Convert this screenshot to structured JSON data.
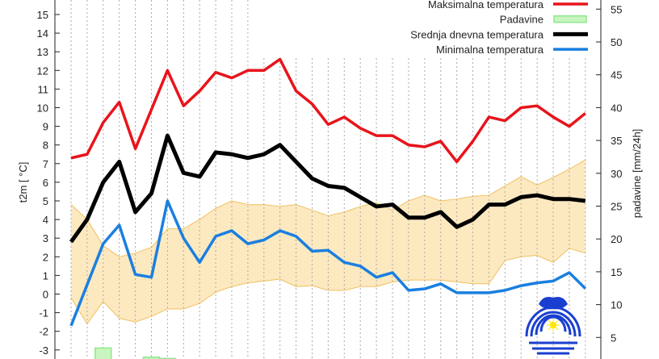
{
  "chart_data": {
    "type": "line",
    "title": "",
    "ylabel": "t2m [ °C]",
    "y2label": "padavine [mm/24h]",
    "ylim": [
      -3,
      15
    ],
    "y2lim": [
      5,
      55
    ],
    "yticks": [
      "-3",
      "-2",
      "-1",
      "0",
      "1",
      "2",
      "3",
      "4",
      "5",
      "6",
      "7",
      "8",
      "9",
      "10",
      "11",
      "12",
      "13",
      "14",
      "15"
    ],
    "y2ticks": [
      "5",
      "10",
      "15",
      "20",
      "25",
      "30",
      "35",
      "40",
      "45",
      "50",
      "55"
    ],
    "grid": "vertical dotted",
    "legend_position": "top-right",
    "legend": [
      {
        "label": "Maksimalna temperatura",
        "color": "#e8141b",
        "kind": "line"
      },
      {
        "label": "Padavine",
        "color": "#8ee88e",
        "kind": "box"
      },
      {
        "label": "Srednja dnevna temperatura",
        "color": "#000000",
        "kind": "line"
      },
      {
        "label": "Minimalna temperatura",
        "color": "#1a7fe0",
        "kind": "line"
      }
    ],
    "band_color": "#fde9c0",
    "series": [
      {
        "name": "Maksimalna temperatura",
        "color": "#e8141b",
        "values": [
          7.3,
          7.5,
          9.2,
          10.3,
          7.8,
          9.9,
          12.0,
          10.1,
          10.9,
          11.9,
          11.6,
          12.0,
          12.0,
          12.6,
          10.9,
          10.2,
          9.1,
          9.5,
          8.9,
          8.5,
          8.5,
          8.0,
          7.9,
          8.2,
          7.1,
          8.2,
          9.5,
          9.3,
          10.0,
          10.1,
          9.5,
          9.0,
          9.7
        ]
      },
      {
        "name": "Srednja dnevna temperatura",
        "color": "#000000",
        "values": [
          2.8,
          4.0,
          6.0,
          7.1,
          4.4,
          5.4,
          8.5,
          6.5,
          6.3,
          7.6,
          7.5,
          7.3,
          7.5,
          8.0,
          7.1,
          6.2,
          5.8,
          5.7,
          5.2,
          4.7,
          4.8,
          4.1,
          4.1,
          4.4,
          3.6,
          4.0,
          4.8,
          4.8,
          5.2,
          5.3,
          5.1,
          5.1,
          5.0
        ]
      },
      {
        "name": "Minimalna temperatura",
        "color": "#1a7fe0",
        "values": [
          -1.7,
          0.5,
          2.7,
          3.7,
          1.05,
          0.9,
          5.0,
          3.0,
          1.7,
          3.1,
          3.4,
          2.7,
          2.9,
          3.4,
          3.1,
          2.3,
          2.35,
          1.7,
          1.5,
          0.9,
          1.15,
          0.2,
          0.28,
          0.55,
          0.07,
          0.07,
          0.07,
          0.2,
          0.45,
          0.6,
          0.7,
          1.15,
          0.3
        ]
      }
    ],
    "band": {
      "upper": [
        4.8,
        4.0,
        2.6,
        2.0,
        2.2,
        2.5,
        3.5,
        3.5,
        4.0,
        4.6,
        5.0,
        4.8,
        4.8,
        4.7,
        4.8,
        4.5,
        4.2,
        4.4,
        4.7,
        4.9,
        4.5,
        5.0,
        5.3,
        5.0,
        5.1,
        5.25,
        5.3,
        5.8,
        6.3,
        5.85,
        6.25,
        6.7,
        7.2
      ],
      "lower": [
        -0.2,
        -1.6,
        -0.4,
        -1.3,
        -1.5,
        -1.2,
        -0.8,
        -0.8,
        -0.5,
        0.1,
        0.4,
        0.6,
        0.7,
        0.8,
        0.4,
        0.45,
        0.2,
        0.2,
        0.4,
        0.4,
        0.65,
        0.75,
        0.75,
        0.75,
        0.65,
        0.55,
        0.55,
        1.8,
        2.0,
        2.07,
        1.7,
        2.45,
        2.2
      ]
    },
    "precipitation": {
      "name": "Padavine",
      "color": "#8ee88e",
      "values": [
        0,
        0,
        3.4,
        0,
        0,
        2.0,
        1.8,
        0,
        0,
        0,
        0,
        0,
        0,
        0,
        0,
        0,
        0,
        0,
        0,
        0,
        0,
        0,
        0,
        0,
        0,
        0,
        0,
        0,
        0,
        0,
        0,
        0,
        0
      ]
    }
  }
}
